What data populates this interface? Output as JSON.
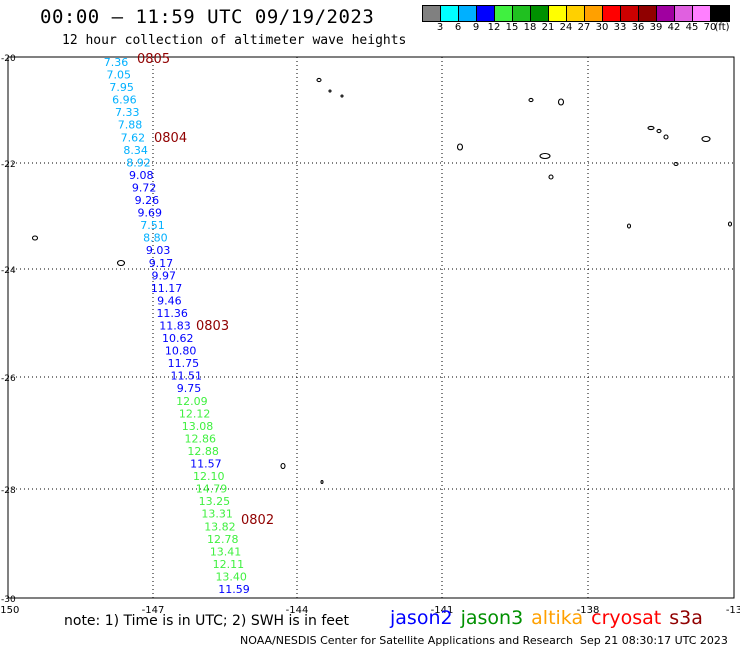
{
  "title": "00:00 – 11:59 UTC 09/19/2023",
  "subtitle": "12 hour collection of altimeter wave heights",
  "legend": {
    "colors": [
      "#808080",
      "#00ffff",
      "#00b0ff",
      "#0000ff",
      "#40f040",
      "#20c020",
      "#009000",
      "#ffff00",
      "#ffd000",
      "#ffa000",
      "#ff0000",
      "#cc0000",
      "#900000",
      "#a000a0",
      "#e060e0",
      "#ff80ff",
      "#000000"
    ],
    "labels": [
      "3",
      "6",
      "9",
      "12",
      "15",
      "18",
      "21",
      "24",
      "27",
      "30",
      "33",
      "36",
      "39",
      "42",
      "45",
      "70"
    ],
    "unit": "(ft)"
  },
  "axes": {
    "lon_labels": [
      "-150",
      "-147",
      "-144",
      "-141",
      "-138",
      "-13"
    ],
    "lat_labels": [
      "-20",
      "-22",
      "-24",
      "-26",
      "-28",
      "-30"
    ]
  },
  "wave_heights": [
    {
      "value": "7.36",
      "color": "#00b0ff"
    },
    {
      "value": "7.05",
      "color": "#00b0ff"
    },
    {
      "value": "7.95",
      "color": "#00b0ff"
    },
    {
      "value": "6.96",
      "color": "#00b0ff"
    },
    {
      "value": "7.33",
      "color": "#00b0ff"
    },
    {
      "value": "7.88",
      "color": "#00b0ff"
    },
    {
      "value": "7.62",
      "color": "#00b0ff"
    },
    {
      "value": "8.34",
      "color": "#00b0ff"
    },
    {
      "value": "8.92",
      "color": "#00b0ff"
    },
    {
      "value": "9.08",
      "color": "#0000ff"
    },
    {
      "value": "9.72",
      "color": "#0000ff"
    },
    {
      "value": "9.26",
      "color": "#0000ff"
    },
    {
      "value": "9.69",
      "color": "#0000ff"
    },
    {
      "value": "7.51",
      "color": "#00b0ff"
    },
    {
      "value": "8.80",
      "color": "#00b0ff"
    },
    {
      "value": "9.03",
      "color": "#0000ff"
    },
    {
      "value": "9.17",
      "color": "#0000ff"
    },
    {
      "value": "9.97",
      "color": "#0000ff"
    },
    {
      "value": "11.17",
      "color": "#0000ff"
    },
    {
      "value": "9.46",
      "color": "#0000ff"
    },
    {
      "value": "11.36",
      "color": "#0000ff"
    },
    {
      "value": "11.83",
      "color": "#0000ff"
    },
    {
      "value": "10.62",
      "color": "#0000ff"
    },
    {
      "value": "10.80",
      "color": "#0000ff"
    },
    {
      "value": "11.75",
      "color": "#0000ff"
    },
    {
      "value": "11.51",
      "color": "#0000ff"
    },
    {
      "value": "9.75",
      "color": "#0000ff"
    },
    {
      "value": "12.09",
      "color": "#40f040"
    },
    {
      "value": "12.12",
      "color": "#40f040"
    },
    {
      "value": "13.08",
      "color": "#40f040"
    },
    {
      "value": "12.86",
      "color": "#40f040"
    },
    {
      "value": "12.88",
      "color": "#40f040"
    },
    {
      "value": "11.57",
      "color": "#0000ff"
    },
    {
      "value": "12.10",
      "color": "#40f040"
    },
    {
      "value": "14.79",
      "color": "#40f040"
    },
    {
      "value": "13.25",
      "color": "#40f040"
    },
    {
      "value": "13.31",
      "color": "#40f040"
    },
    {
      "value": "13.82",
      "color": "#40f040"
    },
    {
      "value": "12.78",
      "color": "#40f040"
    },
    {
      "value": "13.41",
      "color": "#40f040"
    },
    {
      "value": "12.11",
      "color": "#40f040"
    },
    {
      "value": "13.40",
      "color": "#40f040"
    },
    {
      "value": "11.59",
      "color": "#0000ff"
    }
  ],
  "time_labels": [
    {
      "text": "0805",
      "color": "#900000"
    },
    {
      "text": "0804",
      "color": "#900000"
    },
    {
      "text": "0803",
      "color": "#900000"
    },
    {
      "text": "0802",
      "color": "#900000"
    }
  ],
  "note": "note: 1) Time is in UTC; 2) SWH is in feet",
  "satellites": [
    {
      "name": "jason2",
      "color": "#0000ff"
    },
    {
      "name": "jason3",
      "color": "#009000"
    },
    {
      "name": "altika",
      "color": "#ffa000"
    },
    {
      "name": "cryosat",
      "color": "#ff0000"
    },
    {
      "name": "s3a",
      "color": "#900000"
    }
  ],
  "credit": "NOAA/NESDIS Center for Satellite Applications and Research",
  "timestamp": "Sep 21 08:30:17 UTC 2023"
}
